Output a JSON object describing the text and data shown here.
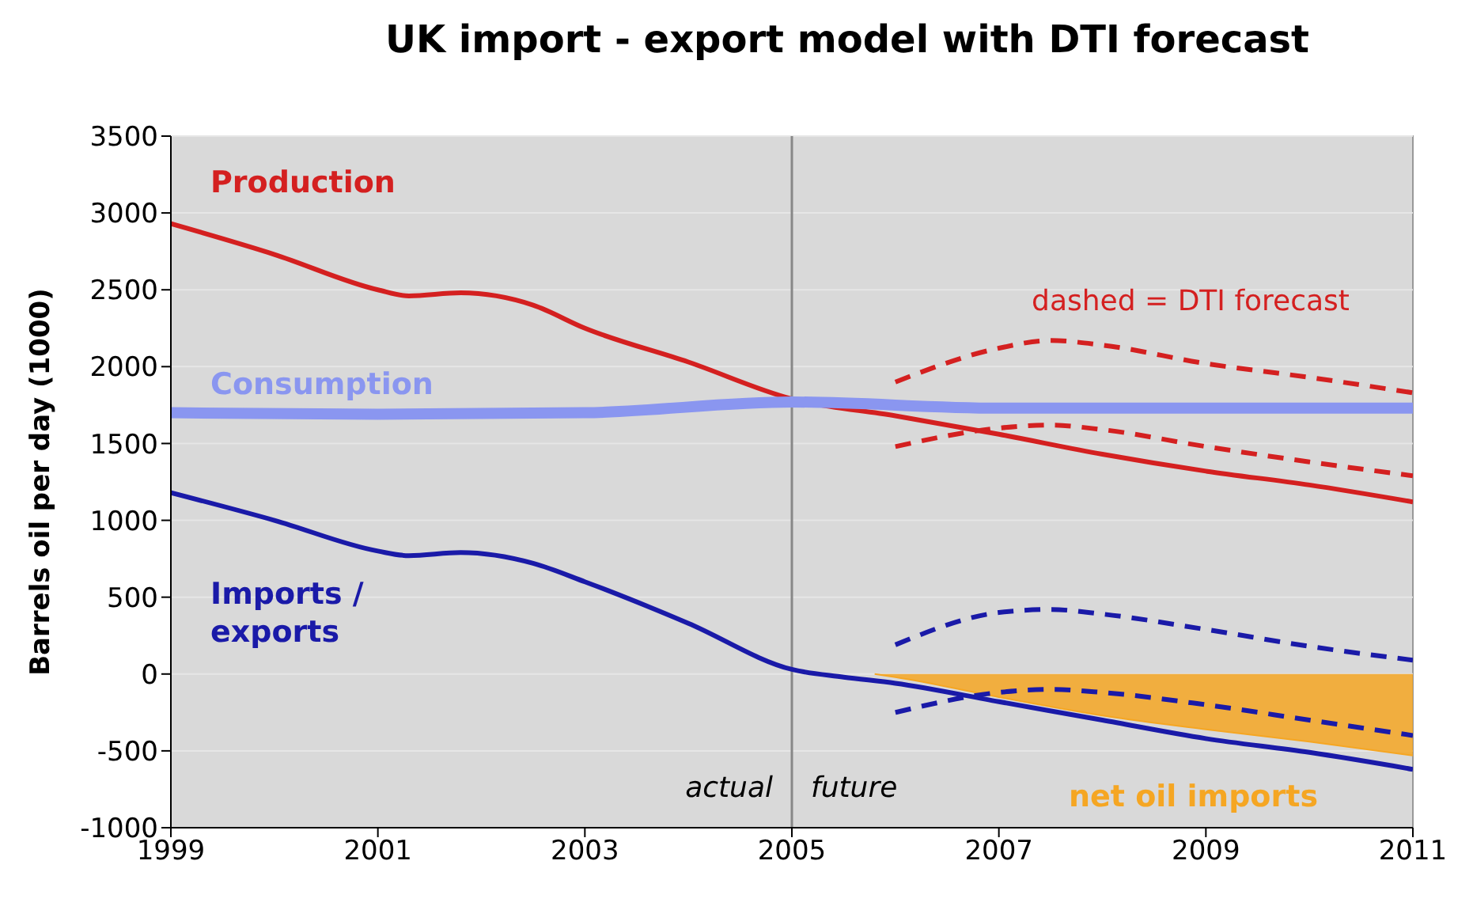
{
  "chart_data": {
    "type": "line",
    "title": "UK import - export model with DTI forecast",
    "ylabel": "Barrels oil per day (1000)",
    "xlim": [
      1999,
      2011
    ],
    "xticks": [
      1999,
      2001,
      2003,
      2005,
      2007,
      2009,
      2011
    ],
    "ylim": [
      -1000,
      3500
    ],
    "yticks": [
      -1000,
      -500,
      0,
      500,
      1000,
      1500,
      2000,
      2500,
      3000,
      3500
    ],
    "grid": "y",
    "annotations": [
      "dashed = DTI forecast",
      {
        "text": "actual",
        "x": 2005,
        "y": -800
      },
      {
        "text": "future",
        "x": 2005,
        "y": -800
      }
    ],
    "ref_lines": [
      {
        "axis": "x",
        "value": 2005,
        "color": "#888888"
      }
    ],
    "series": [
      {
        "name": "net oil imports",
        "type": "area",
        "color": "#f5a623",
        "x": [
          2005.8,
          2006,
          2007,
          2008,
          2009,
          2010,
          2011
        ],
        "values": [
          0,
          -20,
          -150,
          -270,
          -360,
          -440,
          -530
        ]
      },
      {
        "name": "Production",
        "color": "#d42020",
        "x": [
          1999,
          2000,
          2001,
          2001.3,
          2001.8,
          2002.5,
          2003,
          2004,
          2005,
          2006,
          2007,
          2008,
          2009,
          2010,
          2011
        ],
        "values": [
          2930,
          2730,
          2500,
          2460,
          2480,
          2400,
          2250,
          2030,
          1790,
          1680,
          1560,
          1430,
          1320,
          1230,
          1120
        ]
      },
      {
        "name": "Consumption",
        "color": "#8a96f0",
        "x": [
          1999,
          2001,
          2003,
          2005,
          2007,
          2009,
          2011
        ],
        "values": [
          1700,
          1690,
          1700,
          1770,
          1730,
          1730,
          1730
        ]
      },
      {
        "name": "Imports / exports",
        "color": "#1a1aa8",
        "x": [
          1999,
          2000,
          2001,
          2001.3,
          2001.8,
          2002.5,
          2003,
          2004,
          2005,
          2005.5,
          2006,
          2007,
          2008,
          2009,
          2010,
          2011
        ],
        "values": [
          1180,
          1000,
          800,
          770,
          790,
          720,
          600,
          330,
          30,
          -20,
          -60,
          -180,
          -300,
          -420,
          -510,
          -620
        ]
      },
      {
        "color": "#d42020",
        "line_style": "dashed",
        "x": [
          2006,
          2007,
          2007.5,
          2008,
          2009,
          2010,
          2011
        ],
        "values": [
          1900,
          2120,
          2170,
          2140,
          2020,
          1930,
          1830
        ]
      },
      {
        "color": "#d42020",
        "line_style": "dashed",
        "x": [
          2006,
          2007,
          2007.5,
          2008,
          2009,
          2010,
          2011
        ],
        "values": [
          1480,
          1600,
          1620,
          1590,
          1480,
          1380,
          1290
        ]
      },
      {
        "color": "#1a1aa8",
        "line_style": "dashed",
        "x": [
          2006,
          2007,
          2007.5,
          2008,
          2009,
          2010,
          2011
        ],
        "values": [
          190,
          400,
          420,
          390,
          290,
          180,
          90
        ]
      },
      {
        "color": "#1a1aa8",
        "line_style": "dashed",
        "x": [
          2006,
          2007,
          2007.5,
          2008,
          2009,
          2010,
          2011
        ],
        "values": [
          -250,
          -120,
          -100,
          -120,
          -200,
          -300,
          -400
        ]
      }
    ]
  }
}
